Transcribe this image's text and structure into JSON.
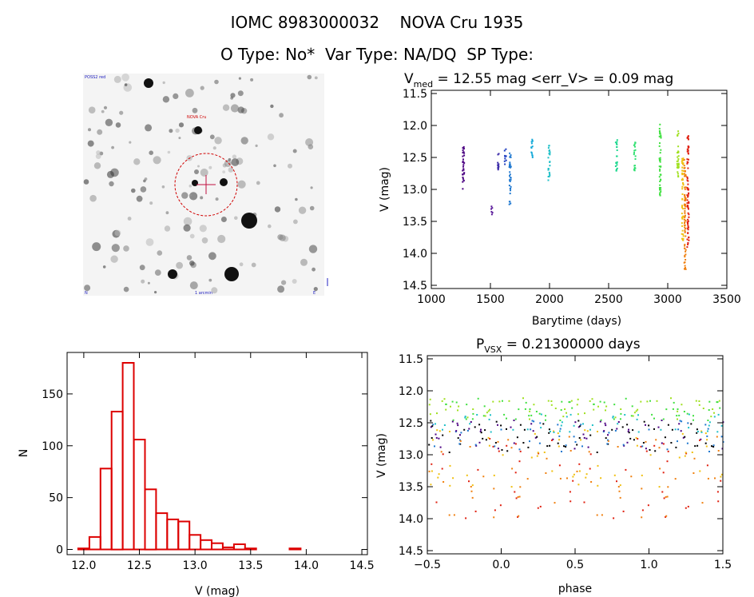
{
  "header": {
    "line1": "IOMC 8983000032    NOVA Cru 1935",
    "line2": "O Type: No*  Var Type: NA/DQ  SP Type:"
  },
  "image_panel": {
    "label_top_left": "POSS2 red",
    "label_target": "NOVA Cru",
    "label_bottom_left": "N",
    "label_bottom_center": "1 arcmin",
    "label_bottom_right": "E"
  },
  "chart_data": [
    {
      "type": "scatter",
      "id": "light_curve",
      "title_main": "V",
      "title_sub": "med",
      "title_rest": " = 12.55 mag <err_V> = 0.09 mag",
      "xlabel": "Barytime (days)",
      "ylabel": "V (mag)",
      "xlim": [
        1000,
        3500
      ],
      "ylim": [
        14.55,
        11.45
      ],
      "xticks": [
        "1000",
        "1500",
        "2000",
        "2500",
        "3000",
        "3500"
      ],
      "yticks": [
        "11.5",
        "12.0",
        "12.5",
        "13.0",
        "13.5",
        "14.0",
        "14.5"
      ],
      "color_scale": "time-coded rainbow (purple early, red late)",
      "groups": [
        {
          "x": 1265,
          "ymin": 12.25,
          "ymax": 13.0,
          "color": "#4b0082"
        },
        {
          "x": 1505,
          "ymin": 13.25,
          "ymax": 13.4,
          "color": "#5a1a9a"
        },
        {
          "x": 1560,
          "ymin": 12.4,
          "ymax": 12.7,
          "color": "#3a2aa8"
        },
        {
          "x": 1620,
          "ymin": 12.35,
          "ymax": 12.6,
          "color": "#2040c0"
        },
        {
          "x": 1660,
          "ymin": 12.4,
          "ymax": 13.25,
          "color": "#1f78d0"
        },
        {
          "x": 1845,
          "ymin": 12.2,
          "ymax": 12.5,
          "color": "#10a8d8"
        },
        {
          "x": 1990,
          "ymin": 12.3,
          "ymax": 12.85,
          "color": "#20c0c8"
        },
        {
          "x": 2560,
          "ymin": 12.2,
          "ymax": 12.7,
          "color": "#20d890"
        },
        {
          "x": 2715,
          "ymin": 12.25,
          "ymax": 12.7,
          "color": "#30e070"
        },
        {
          "x": 2930,
          "ymin": 11.95,
          "ymax": 13.1,
          "color": "#40e040"
        },
        {
          "x": 3080,
          "ymin": 12.05,
          "ymax": 12.8,
          "color": "#a0e020"
        },
        {
          "x": 3120,
          "ymin": 12.5,
          "ymax": 13.8,
          "color": "#f0c010"
        },
        {
          "x": 3140,
          "ymin": 12.5,
          "ymax": 14.25,
          "color": "#f08010"
        },
        {
          "x": 3165,
          "ymin": 12.1,
          "ymax": 13.9,
          "color": "#e02010"
        }
      ]
    },
    {
      "type": "bar",
      "id": "histogram",
      "xlabel": "V (mag)",
      "ylabel": "N",
      "xlim": [
        11.85,
        14.55
      ],
      "ylim": [
        -5,
        190
      ],
      "xticks": [
        "12.0",
        "12.5",
        "13.0",
        "13.5",
        "14.0",
        "14.5"
      ],
      "yticks": [
        "0",
        "50",
        "100",
        "150"
      ],
      "bin_width": 0.1,
      "bin_start": 11.95,
      "values": [
        1,
        12,
        78,
        133,
        180,
        106,
        58,
        35,
        29,
        27,
        14,
        9,
        6,
        2,
        5,
        1,
        0,
        0,
        0,
        1,
        0
      ],
      "color": "#dd0000"
    },
    {
      "type": "scatter",
      "id": "phased",
      "title_main": "P",
      "title_sub": "VSX",
      "title_rest": " = 0.21300000 days",
      "xlabel": "phase",
      "ylabel": "V (mag)",
      "xlim": [
        -0.5,
        1.5
      ],
      "ylim": [
        14.55,
        11.45
      ],
      "xticks": [
        "−0.5",
        "0.0",
        "0.5",
        "1.0",
        "1.5"
      ],
      "yticks": [
        "11.5",
        "12.0",
        "12.5",
        "13.0",
        "13.5",
        "14.0",
        "14.5"
      ],
      "period_days": 0.213
    }
  ]
}
